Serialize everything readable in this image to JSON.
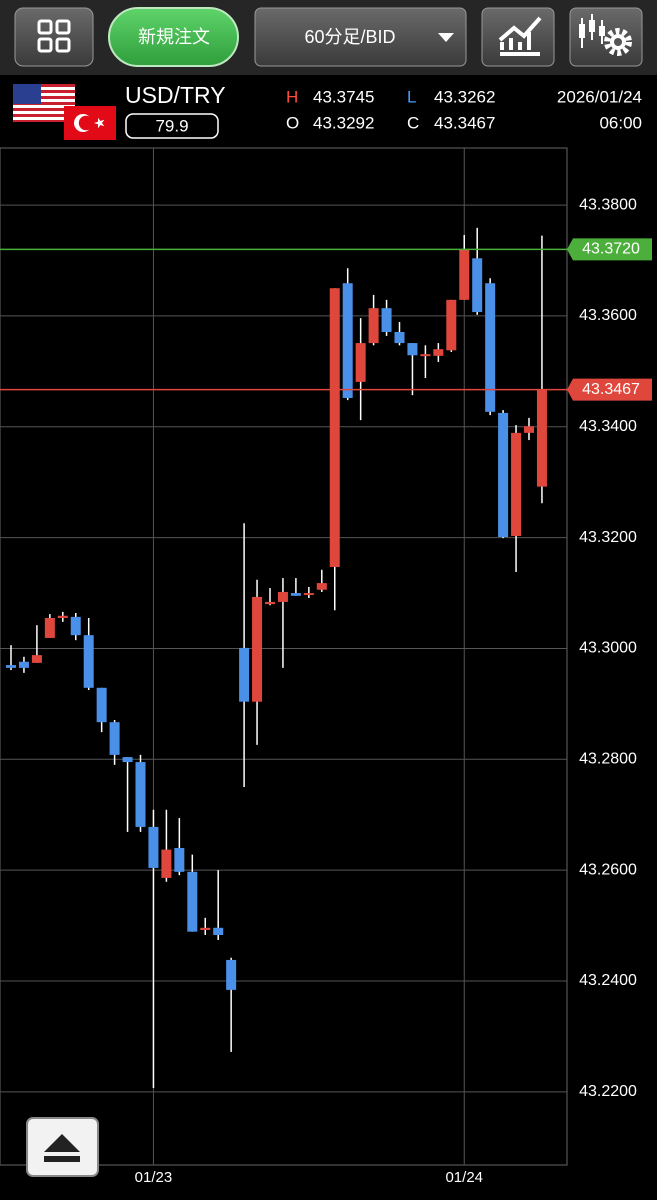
{
  "ui": {
    "toolbar": {
      "order_button": "新規注文",
      "timeframe": "60分足/BID"
    },
    "info": {
      "symbol": "USD/TRY",
      "spread": "79.9",
      "high_label": "H",
      "high": "43.3745",
      "low_label": "L",
      "low": "43.3262",
      "open_label": "O",
      "open": "43.3292",
      "close_label": "C",
      "close": "43.3467",
      "date": "2026/01/24",
      "time": "06:00"
    }
  },
  "chart_data": {
    "type": "candlestick",
    "categories": [
      null,
      null,
      null,
      null,
      null,
      null,
      null,
      null,
      null,
      null,
      null,
      "01/23",
      null,
      null,
      null,
      null,
      null,
      null,
      null,
      null,
      null,
      null,
      null,
      null,
      null,
      null,
      null,
      null,
      null,
      null,
      null,
      null,
      null,
      null,
      null,
      "01/24",
      null,
      null,
      null,
      null,
      null,
      null
    ],
    "open": [
      43.297,
      43.2976,
      43.2974,
      43.3019,
      43.3055,
      43.3057,
      43.3024,
      43.2929,
      43.2867,
      43.2804,
      43.2795,
      43.2678,
      43.2586,
      43.264,
      43.2597,
      43.2492,
      43.2496,
      43.2438,
      43.3001,
      43.2904,
      43.308,
      43.3084,
      43.31,
      43.3097,
      43.3106,
      43.3147,
      43.3659,
      43.3481,
      43.3551,
      43.3614,
      43.3571,
      43.3551,
      43.3528,
      43.3528,
      43.3538,
      43.3629,
      43.3704,
      43.3659,
      43.3425,
      43.3203,
      43.3389,
      43.3292
    ],
    "high": [
      43.3006,
      43.2985,
      43.3042,
      43.3062,
      43.3066,
      43.3064,
      43.3055,
      43.2929,
      43.2871,
      43.2804,
      43.2808,
      43.2709,
      43.2709,
      43.2694,
      43.2628,
      43.2514,
      43.26,
      43.2442,
      43.3226,
      43.3124,
      43.3109,
      43.3127,
      43.3127,
      43.3111,
      43.3142,
      43.365,
      43.3686,
      43.3596,
      43.3638,
      43.3629,
      43.3589,
      43.3551,
      43.3547,
      43.3551,
      43.3629,
      43.3746,
      43.3759,
      43.3668,
      43.343,
      43.3403,
      43.3416,
      43.3745
    ],
    "low": [
      43.2961,
      43.2956,
      43.2974,
      43.3019,
      43.3048,
      43.3015,
      43.2925,
      43.2849,
      43.279,
      43.2669,
      43.2669,
      43.2207,
      43.2579,
      43.2591,
      43.2489,
      43.2483,
      43.2474,
      43.2272,
      43.275,
      43.2826,
      43.3078,
      43.2965,
      43.3095,
      43.3091,
      43.3102,
      43.3069,
      43.3448,
      43.3412,
      43.3547,
      43.3564,
      43.3547,
      43.3457,
      43.3488,
      43.3517,
      43.3535,
      43.3629,
      43.3602,
      43.3421,
      43.3199,
      43.3138,
      43.3376,
      43.3262
    ],
    "close": [
      43.2965,
      43.2965,
      43.2988,
      43.3055,
      43.3059,
      43.3024,
      43.2929,
      43.2867,
      43.2808,
      43.2795,
      43.2678,
      43.2604,
      43.2637,
      43.2597,
      43.2489,
      43.2496,
      43.2483,
      43.2384,
      43.2904,
      43.3093,
      43.3084,
      43.3102,
      43.3095,
      43.31,
      43.3118,
      43.365,
      43.3452,
      43.3551,
      43.3614,
      43.3571,
      43.3551,
      43.3529,
      43.3531,
      43.354,
      43.3629,
      43.3719,
      43.3607,
      43.3427,
      43.3201,
      43.3389,
      43.3401,
      43.3467
    ],
    "up_color": "#e0473c",
    "down_color": "#4a90e8",
    "ylim": [
      43.2068,
      43.3903
    ],
    "yticks": [
      {
        "value": 43.22,
        "label": "43.2200"
      },
      {
        "value": 43.24,
        "label": "43.2400"
      },
      {
        "value": 43.26,
        "label": "43.2600"
      },
      {
        "value": 43.28,
        "label": "43.2800"
      },
      {
        "value": 43.3,
        "label": "43.3000"
      },
      {
        "value": 43.32,
        "label": "43.3200"
      },
      {
        "value": 43.34,
        "label": "43.3400"
      },
      {
        "value": 43.36,
        "label": "43.3600"
      },
      {
        "value": 43.38,
        "label": "43.3800"
      }
    ],
    "grid": true,
    "price_lines": [
      {
        "value": 43.372,
        "label": "43.3720",
        "color": "#4caf3c"
      },
      {
        "value": 43.3467,
        "label": "43.3467",
        "color": "#e0473c"
      }
    ]
  }
}
